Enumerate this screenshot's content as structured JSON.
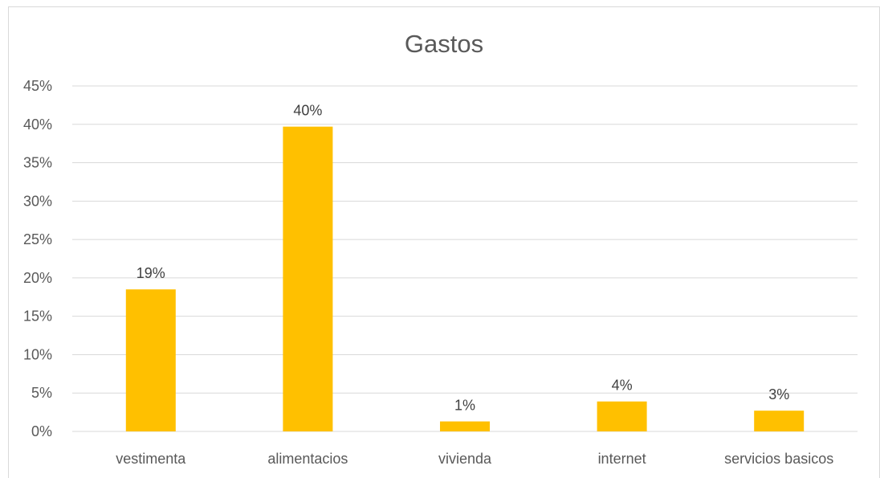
{
  "chart_data": {
    "type": "bar",
    "title": "Gastos",
    "xlabel": "",
    "ylabel": "",
    "categories": [
      "vestimenta",
      "alimentacios",
      "vivienda",
      "internet",
      "servicios basicos"
    ],
    "values": [
      0.185,
      0.397,
      0.013,
      0.039,
      0.027
    ],
    "data_labels": [
      "19%",
      "40%",
      "1%",
      "4%",
      "3%"
    ],
    "ylim": [
      0,
      0.45
    ],
    "y_ticks": [
      0,
      0.05,
      0.1,
      0.15,
      0.2,
      0.25,
      0.3,
      0.35,
      0.4,
      0.45
    ],
    "y_tick_labels": [
      "0%",
      "5%",
      "10%",
      "15%",
      "20%",
      "25%",
      "30%",
      "35%",
      "40%",
      "45%"
    ],
    "grid": true,
    "legend": "none",
    "bar_color": "#FFC000",
    "gridline_color": "#D9D9D9"
  }
}
